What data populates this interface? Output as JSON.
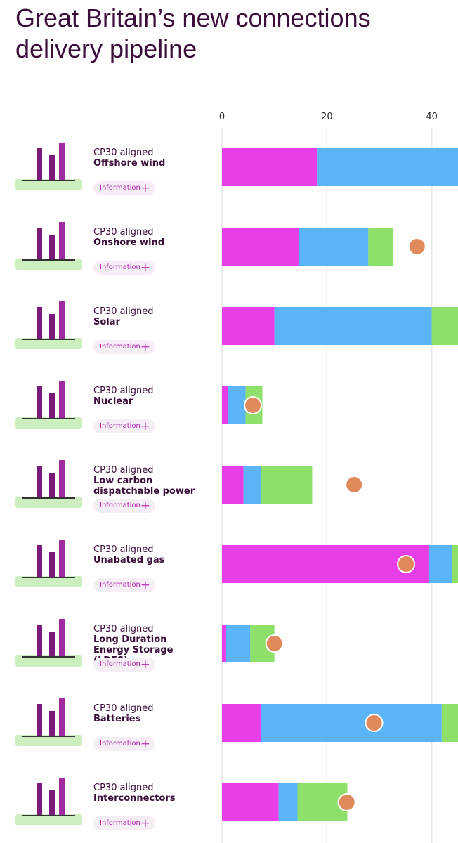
{
  "chart_data": {
    "type": "stacked-bar-horizontal",
    "title": "Great Britain’s new connections delivery pipeline",
    "row_tag": "CP30 aligned",
    "button_label": "Information",
    "categories": [
      "Offshore wind",
      "Onshore wind",
      "Solar",
      "Nuclear",
      "Low carbon dispatchable power",
      "Unabated gas",
      "Long Duration Energy Storage (LDES)",
      "Batteries",
      "Interconnectors"
    ],
    "series": [
      {
        "color": "#e83ee8",
        "values": [
          18.1,
          14.6,
          10,
          1.2,
          4.1,
          39.5,
          0.8,
          7.5,
          10.8
        ]
      },
      {
        "color": "#5ab4f5",
        "values": [
          27,
          13.3,
          30,
          3.3,
          3.3,
          4.3,
          4.6,
          34.4,
          3.6
        ]
      },
      {
        "color": "#8ee06a",
        "values": [
          null,
          4.7,
          5,
          3.2,
          9.8,
          2,
          4.6,
          4,
          9.5
        ]
      }
    ],
    "markers": {
      "color": "#e08a5c",
      "values": [
        null,
        37.2,
        null,
        5.9,
        25.2,
        35.1,
        10,
        29,
        23.8
      ]
    },
    "xlim": [
      0,
      45
    ],
    "xticks": [
      0,
      20,
      40
    ],
    "grid": true
  }
}
